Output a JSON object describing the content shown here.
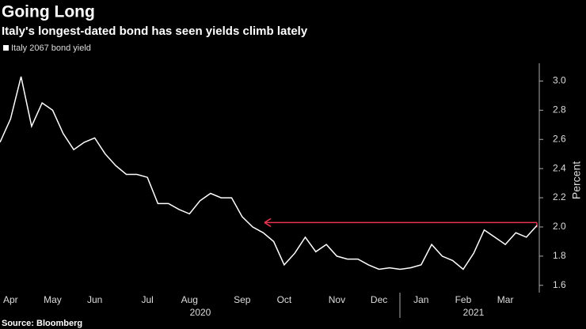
{
  "chart_data": {
    "type": "line",
    "title": "Going Long",
    "subtitle": "Italy's longest-dated bond has seen yields climb lately",
    "y_axis_label": "Percent",
    "source": "Source: Bloomberg",
    "categories": [
      null,
      "Apr",
      null,
      null,
      null,
      "May",
      null,
      null,
      null,
      "Jun",
      null,
      null,
      null,
      null,
      "Jul",
      null,
      null,
      null,
      "Aug",
      null,
      null,
      null,
      null,
      "Sep",
      null,
      null,
      null,
      "Oct",
      null,
      null,
      null,
      null,
      "Nov",
      null,
      null,
      null,
      "Dec",
      null,
      null,
      null,
      "Jan",
      null,
      null,
      null,
      "Feb",
      null,
      null,
      null,
      "Mar",
      null,
      null,
      null
    ],
    "x_groups": [
      "2020",
      "2021"
    ],
    "series": [
      {
        "name": "Italy 2067 bond yield",
        "color": "#ffffff",
        "values": [
          2.58,
          2.74,
          3.03,
          2.69,
          2.85,
          2.8,
          2.64,
          2.53,
          2.58,
          2.61,
          2.5,
          2.42,
          2.36,
          2.36,
          2.34,
          2.16,
          2.16,
          2.12,
          2.09,
          2.18,
          2.23,
          2.2,
          2.2,
          2.07,
          2.0,
          1.96,
          1.9,
          1.74,
          1.82,
          1.93,
          1.83,
          1.88,
          1.8,
          1.78,
          1.78,
          1.74,
          1.71,
          1.72,
          1.71,
          1.72,
          1.74,
          1.88,
          1.8,
          1.77,
          1.71,
          1.82,
          1.98,
          1.93,
          1.88,
          1.96,
          1.93,
          2.01
        ]
      }
    ],
    "reference_line": {
      "value": 2.03,
      "color": "#e8344e"
    },
    "ylim": [
      1.55,
      3.1
    ],
    "yticks": [
      1.6,
      1.8,
      {
        "value": 2.0,
        "label": "2.0"
      },
      2.2,
      2.4,
      2.6,
      2.8,
      {
        "value": 3.0,
        "label": "3.0"
      }
    ],
    "grid": false
  }
}
